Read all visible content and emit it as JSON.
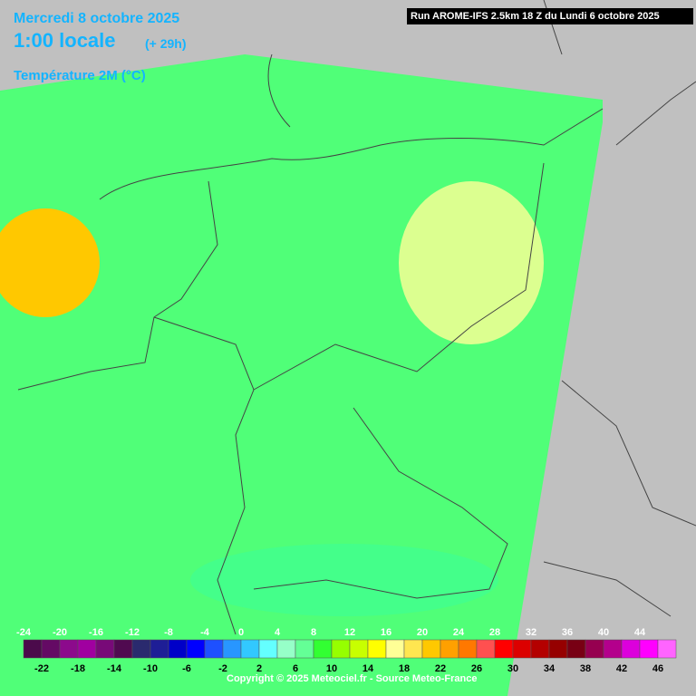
{
  "header": {
    "date": "Mercredi 8 octobre 2025",
    "time": "1:00 locale",
    "offset": "(+ 29h)",
    "field": "Température 2M (°C)",
    "run": "Run AROME-IFS 2.5km 18 Z du Lundi 6 octobre 2025"
  },
  "legend": {
    "values": [
      -24,
      -22,
      -20,
      -18,
      -16,
      -14,
      -12,
      -10,
      -8,
      -6,
      -4,
      -2,
      0,
      2,
      4,
      6,
      8,
      10,
      12,
      14,
      16,
      18,
      20,
      22,
      24,
      26,
      28,
      30,
      32,
      34,
      36,
      38,
      40,
      42,
      44,
      46
    ],
    "colors": [
      "#4b0a4b",
      "#640a64",
      "#8c0a8c",
      "#a000a0",
      "#780a78",
      "#500a50",
      "#2a2a6e",
      "#1e1e96",
      "#0000c8",
      "#0000ff",
      "#1e50ff",
      "#2896ff",
      "#32c8ff",
      "#64ffff",
      "#96ffc8",
      "#64ff96",
      "#32ff32",
      "#96ff00",
      "#c8ff00",
      "#ffff00",
      "#ffff96",
      "#ffe650",
      "#ffc800",
      "#ffa000",
      "#ff7800",
      "#ff5050",
      "#ff0000",
      "#dc0000",
      "#b40000",
      "#960000",
      "#780014",
      "#960050",
      "#b4008c",
      "#dc00dc",
      "#ff00ff",
      "#ff64ff"
    ]
  },
  "footer": {
    "copyright": "Copyright © 2025 Meteociel.fr - Source Meteo-France"
  }
}
